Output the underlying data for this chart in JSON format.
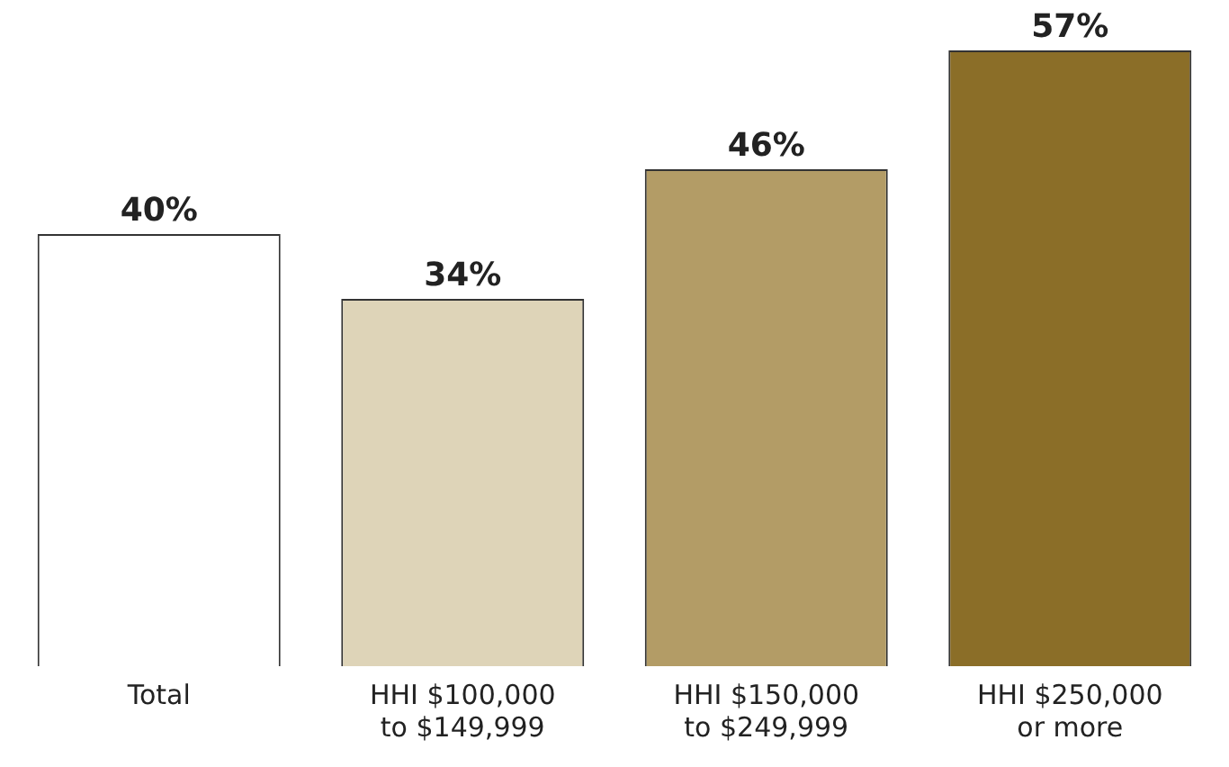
{
  "chart_data": {
    "type": "bar",
    "categories": [
      "Total",
      "HHI $100,000 to $149,999",
      "HHI $150,000 to $249,999",
      "HHI $250,000 or more"
    ],
    "values": [
      40,
      34,
      46,
      57
    ],
    "colors": [
      "#ffffff",
      "#ded4b8",
      "#b39c66",
      "#8b6e28"
    ],
    "value_labels": [
      "40%",
      "34%",
      "46%",
      "57%"
    ]
  }
}
